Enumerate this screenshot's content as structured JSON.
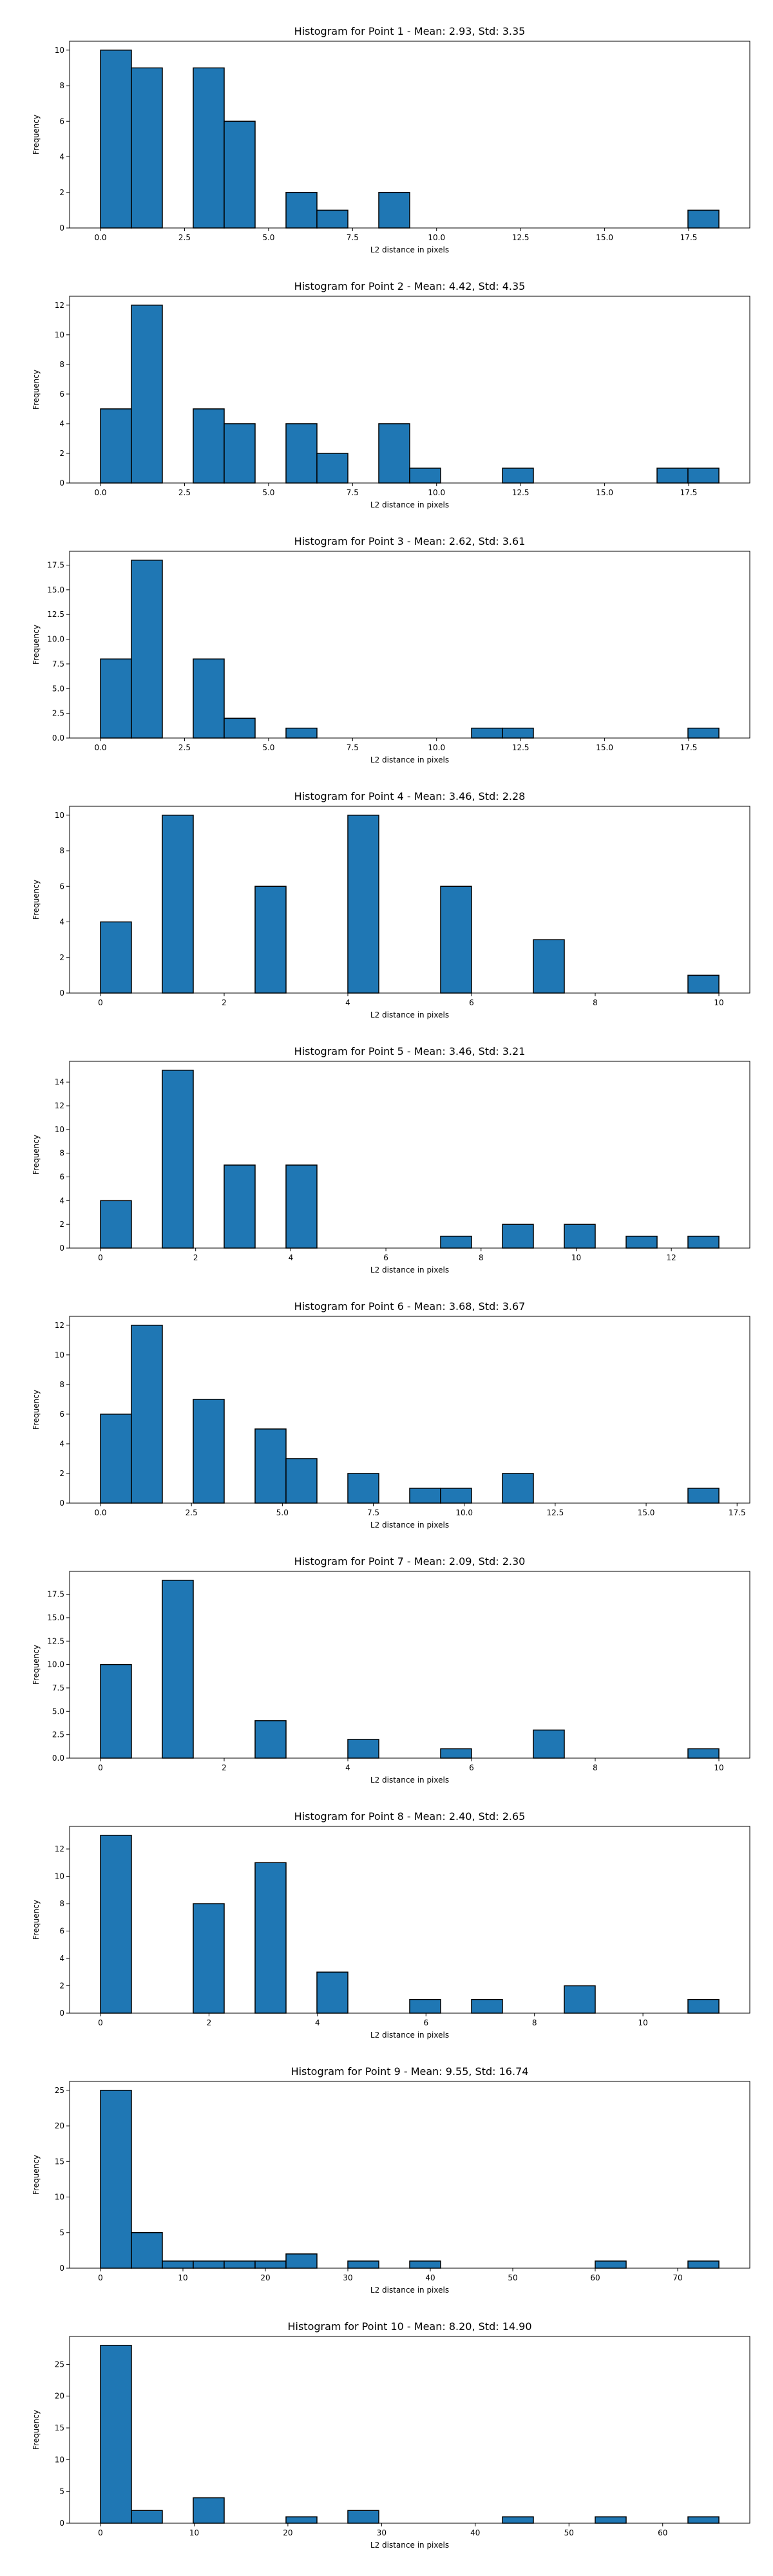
{
  "bar_color": "#1f77b4",
  "edge_color": "#000000",
  "chart_data": [
    {
      "type": "bar",
      "title": "Histogram for Point 1 - Mean: 2.93, Std: 3.35",
      "xlabel": "L2 distance in pixels",
      "ylabel": "Frequency",
      "bins": {
        "start": 0.0,
        "width": 0.92,
        "count": 20
      },
      "values": [
        10,
        9,
        0,
        9,
        6,
        0,
        2,
        1,
        0,
        2,
        0,
        0,
        0,
        0,
        0,
        0,
        0,
        0,
        0,
        1
      ],
      "xlim": [
        -0.92,
        19.32
      ],
      "ylim": [
        0,
        10.5
      ],
      "xticks": [
        0.0,
        2.5,
        5.0,
        7.5,
        10.0,
        12.5,
        15.0,
        17.5
      ],
      "xtick_labels": [
        "0.0",
        "2.5",
        "5.0",
        "7.5",
        "10.0",
        "12.5",
        "15.0",
        "17.5"
      ],
      "yticks": [
        0,
        2,
        4,
        6,
        8,
        10
      ],
      "ytick_labels": [
        "0",
        "2",
        "4",
        "6",
        "8",
        "10"
      ]
    },
    {
      "type": "bar",
      "title": "Histogram for Point 2 - Mean: 4.42, Std: 4.35",
      "xlabel": "L2 distance in pixels",
      "ylabel": "Frequency",
      "bins": {
        "start": 0.0,
        "width": 0.92,
        "count": 20
      },
      "values": [
        5,
        12,
        0,
        5,
        4,
        0,
        4,
        2,
        0,
        4,
        1,
        0,
        0,
        1,
        0,
        0,
        0,
        0,
        1,
        1
      ],
      "xlim": [
        -0.92,
        19.32
      ],
      "ylim": [
        0,
        12.6
      ],
      "xticks": [
        0.0,
        2.5,
        5.0,
        7.5,
        10.0,
        12.5,
        15.0,
        17.5
      ],
      "xtick_labels": [
        "0.0",
        "2.5",
        "5.0",
        "7.5",
        "10.0",
        "12.5",
        "15.0",
        "17.5"
      ],
      "yticks": [
        0,
        2,
        4,
        6,
        8,
        10,
        12
      ],
      "ytick_labels": [
        "0",
        "2",
        "4",
        "6",
        "8",
        "10",
        "12"
      ]
    },
    {
      "type": "bar",
      "title": "Histogram for Point 3 - Mean: 2.62, Std: 3.61",
      "xlabel": "L2 distance in pixels",
      "ylabel": "Frequency",
      "bins": {
        "start": 0.0,
        "width": 0.92,
        "count": 20
      },
      "values": [
        8,
        18,
        0,
        8,
        2,
        0,
        1,
        0,
        0,
        0,
        0,
        0,
        1,
        1,
        0,
        0,
        0,
        0,
        0,
        1
      ],
      "xlim": [
        -0.92,
        19.32
      ],
      "ylim": [
        0,
        18.9
      ],
      "xticks": [
        0.0,
        2.5,
        5.0,
        7.5,
        10.0,
        12.5,
        15.0,
        17.5
      ],
      "xtick_labels": [
        "0.0",
        "2.5",
        "5.0",
        "7.5",
        "10.0",
        "12.5",
        "15.0",
        "17.5"
      ],
      "yticks": [
        0,
        2.5,
        5,
        7.5,
        10,
        12.5,
        15,
        17.5
      ],
      "ytick_labels": [
        "0.0",
        "2.5",
        "5.0",
        "7.5",
        "10.0",
        "12.5",
        "15.0",
        "17.5"
      ]
    },
    {
      "type": "bar",
      "title": "Histogram for Point 4 - Mean: 3.46, Std: 2.28",
      "xlabel": "L2 distance in pixels",
      "ylabel": "Frequency",
      "bins": {
        "start": 0.0,
        "width": 0.5,
        "count": 20
      },
      "values": [
        4,
        0,
        10,
        0,
        0,
        6,
        0,
        0,
        10,
        0,
        0,
        6,
        0,
        0,
        3,
        0,
        0,
        0,
        0,
        1
      ],
      "xlim": [
        -0.5,
        10.5
      ],
      "ylim": [
        0,
        10.5
      ],
      "xticks": [
        0,
        2,
        4,
        6,
        8,
        10
      ],
      "xtick_labels": [
        "0",
        "2",
        "4",
        "6",
        "8",
        "10"
      ],
      "yticks": [
        0,
        2,
        4,
        6,
        8,
        10
      ],
      "ytick_labels": [
        "0",
        "2",
        "4",
        "6",
        "8",
        "10"
      ]
    },
    {
      "type": "bar",
      "title": "Histogram for Point 5 - Mean: 3.46, Std: 3.21",
      "xlabel": "L2 distance in pixels",
      "ylabel": "Frequency",
      "bins": {
        "start": 0.0,
        "width": 0.65,
        "count": 20
      },
      "values": [
        4,
        0,
        15,
        0,
        7,
        0,
        7,
        0,
        0,
        0,
        0,
        1,
        0,
        2,
        0,
        2,
        0,
        1,
        0,
        1
      ],
      "xlim": [
        -0.65,
        13.65
      ],
      "ylim": [
        0,
        15.75
      ],
      "xticks": [
        0,
        2,
        4,
        6,
        8,
        10,
        12
      ],
      "xtick_labels": [
        "0",
        "2",
        "4",
        "6",
        "8",
        "10",
        "12"
      ],
      "yticks": [
        0,
        2,
        4,
        6,
        8,
        10,
        12,
        14
      ],
      "ytick_labels": [
        "0",
        "2",
        "4",
        "6",
        "8",
        "10",
        "12",
        "14"
      ]
    },
    {
      "type": "bar",
      "title": "Histogram for Point 6 - Mean: 3.68, Std: 3.67",
      "xlabel": "L2 distance in pixels",
      "ylabel": "Frequency",
      "bins": {
        "start": 0.0,
        "width": 0.85,
        "count": 20
      },
      "values": [
        6,
        12,
        0,
        7,
        0,
        5,
        3,
        0,
        2,
        0,
        1,
        1,
        0,
        2,
        0,
        0,
        0,
        0,
        0,
        1
      ],
      "xlim": [
        -0.85,
        17.85
      ],
      "ylim": [
        0,
        12.6
      ],
      "xticks": [
        0.0,
        2.5,
        5.0,
        7.5,
        10.0,
        12.5,
        15.0,
        17.5
      ],
      "xtick_labels": [
        "0.0",
        "2.5",
        "5.0",
        "7.5",
        "10.0",
        "12.5",
        "15.0",
        "17.5"
      ],
      "yticks": [
        0,
        2,
        4,
        6,
        8,
        10,
        12
      ],
      "ytick_labels": [
        "0",
        "2",
        "4",
        "6",
        "8",
        "10",
        "12"
      ]
    },
    {
      "type": "bar",
      "title": "Histogram for Point 7 - Mean: 2.09, Std: 2.30",
      "xlabel": "L2 distance in pixels",
      "ylabel": "Frequency",
      "bins": {
        "start": 0.0,
        "width": 0.5,
        "count": 20
      },
      "values": [
        10,
        0,
        19,
        0,
        0,
        4,
        0,
        0,
        2,
        0,
        0,
        1,
        0,
        0,
        3,
        0,
        0,
        0,
        0,
        1
      ],
      "xlim": [
        -0.5,
        10.5
      ],
      "ylim": [
        0,
        19.95
      ],
      "xticks": [
        0,
        2,
        4,
        6,
        8,
        10
      ],
      "xtick_labels": [
        "0",
        "2",
        "4",
        "6",
        "8",
        "10"
      ],
      "yticks": [
        0,
        2.5,
        5,
        7.5,
        10,
        12.5,
        15,
        17.5
      ],
      "ytick_labels": [
        "0.0",
        "2.5",
        "5.0",
        "7.5",
        "10.0",
        "12.5",
        "15.0",
        "17.5"
      ]
    },
    {
      "type": "bar",
      "title": "Histogram for Point 8 - Mean: 2.40, Std: 2.65",
      "xlabel": "L2 distance in pixels",
      "ylabel": "Frequency",
      "bins": {
        "start": 0.0,
        "width": 0.57,
        "count": 20
      },
      "values": [
        13,
        0,
        0,
        8,
        0,
        11,
        0,
        3,
        0,
        0,
        1,
        0,
        1,
        0,
        0,
        2,
        0,
        0,
        0,
        1
      ],
      "xlim": [
        -0.57,
        11.97
      ],
      "ylim": [
        0,
        13.65
      ],
      "xticks": [
        0,
        2,
        4,
        6,
        8,
        10
      ],
      "xtick_labels": [
        "0",
        "2",
        "4",
        "6",
        "8",
        "10"
      ],
      "yticks": [
        0,
        2,
        4,
        6,
        8,
        10,
        12
      ],
      "ytick_labels": [
        "0",
        "2",
        "4",
        "6",
        "8",
        "10",
        "12"
      ]
    },
    {
      "type": "bar",
      "title": "Histogram for Point 9 - Mean: 9.55, Std: 16.74",
      "xlabel": "L2 distance in pixels",
      "ylabel": "Frequency",
      "bins": {
        "start": 0.0,
        "width": 3.75,
        "count": 20
      },
      "values": [
        25,
        5,
        1,
        1,
        1,
        1,
        2,
        0,
        1,
        0,
        1,
        0,
        0,
        0,
        0,
        0,
        1,
        0,
        0,
        1
      ],
      "xlim": [
        -3.75,
        78.75
      ],
      "ylim": [
        0,
        26.25
      ],
      "xticks": [
        0,
        10,
        20,
        30,
        40,
        50,
        60,
        70
      ],
      "xtick_labels": [
        "0",
        "10",
        "20",
        "30",
        "40",
        "50",
        "60",
        "70"
      ],
      "yticks": [
        0,
        5,
        10,
        15,
        20,
        25
      ],
      "ytick_labels": [
        "0",
        "5",
        "10",
        "15",
        "20",
        "25"
      ]
    },
    {
      "type": "bar",
      "title": "Histogram for Point 10 - Mean: 8.20, Std: 14.90",
      "xlabel": "L2 distance in pixels",
      "ylabel": "Frequency",
      "bins": {
        "start": 0.0,
        "width": 3.3,
        "count": 20
      },
      "values": [
        28,
        2,
        0,
        4,
        0,
        0,
        1,
        0,
        2,
        0,
        0,
        0,
        0,
        1,
        0,
        0,
        1,
        0,
        0,
        1
      ],
      "xlim": [
        -3.3,
        69.3
      ],
      "ylim": [
        0,
        29.4
      ],
      "xticks": [
        0,
        10,
        20,
        30,
        40,
        50,
        60
      ],
      "xtick_labels": [
        "0",
        "10",
        "20",
        "30",
        "40",
        "50",
        "60"
      ],
      "yticks": [
        0,
        5,
        10,
        15,
        20,
        25
      ],
      "ytick_labels": [
        "0",
        "5",
        "10",
        "15",
        "20",
        "25"
      ]
    }
  ]
}
